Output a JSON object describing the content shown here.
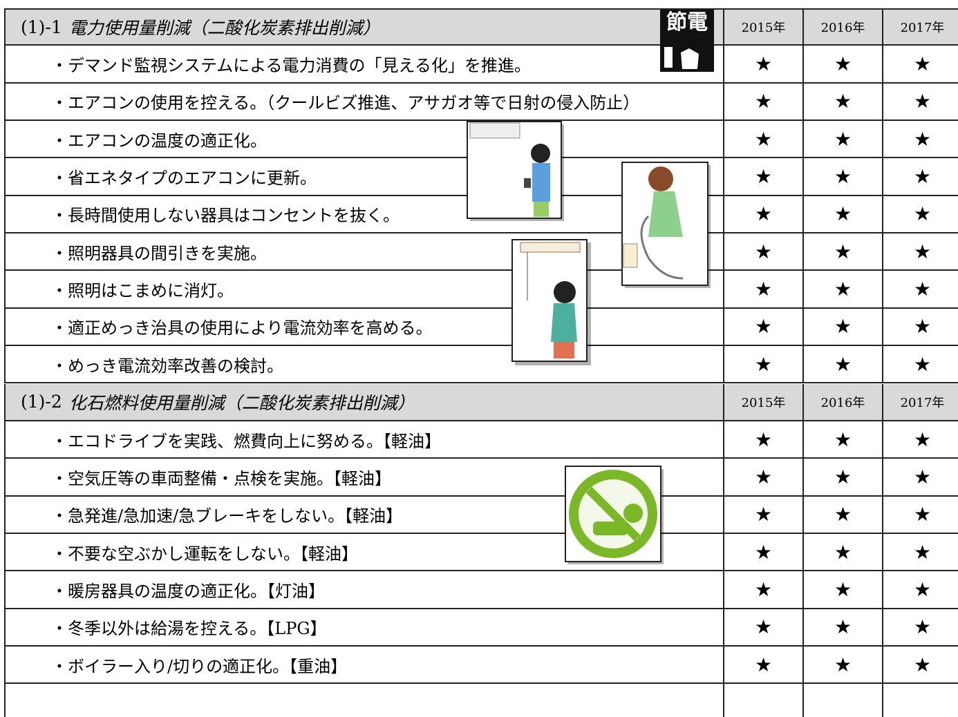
{
  "icon_text": "節電",
  "sections": [
    {
      "number": "(1)-1",
      "title": "電力使用量削減（二酸化炭素排出削減）",
      "years": [
        "2015年",
        "2016年",
        "2017年"
      ],
      "rows": [
        {
          "text": "・デマンド監視システムによる電力消費の「見える化」を推進。",
          "marks": [
            "★",
            "★",
            "★"
          ]
        },
        {
          "text": "・エアコンの使用を控える。（クールビズ推進、アサガオ等で日射の侵入防止）",
          "marks": [
            "★",
            "★",
            "★"
          ]
        },
        {
          "text": "・エアコンの温度の適正化。",
          "marks": [
            "★",
            "★",
            "★"
          ]
        },
        {
          "text": "・省エネタイプのエアコンに更新。",
          "marks": [
            "★",
            "★",
            "★"
          ]
        },
        {
          "text": "・長時間使用しない器具はコンセントを抜く。",
          "marks": [
            "★",
            "★",
            "★"
          ]
        },
        {
          "text": "・照明器具の間引きを実施。",
          "marks": [
            "★",
            "★",
            "★"
          ]
        },
        {
          "text": "・照明はこまめに消灯。",
          "marks": [
            "★",
            "★",
            "★"
          ]
        },
        {
          "text": "・適正めっき治具の使用により電流効率を高める。",
          "marks": [
            "★",
            "★",
            "★"
          ]
        },
        {
          "text": "・めっき電流効率改善の検討。",
          "marks": [
            "★",
            "★",
            "★"
          ]
        }
      ]
    },
    {
      "number": "(1)-2",
      "title": "化石燃料使用量削減（二酸化炭素排出削減）",
      "years": [
        "2015年",
        "2016年",
        "2017年"
      ],
      "rows": [
        {
          "text": "・エコドライブを実践、燃費向上に努める。【軽油】",
          "marks": [
            "★",
            "★",
            "★"
          ]
        },
        {
          "text": "・空気圧等の車両整備・点検を実施。【軽油】",
          "marks": [
            "★",
            "★",
            "★"
          ]
        },
        {
          "text": "・急発進/急加速/急ブレーキをしない。【軽油】",
          "marks": [
            "★",
            "★",
            "★"
          ]
        },
        {
          "text": "・不要な空ぶかし運転をしない。【軽油】",
          "marks": [
            "★",
            "★",
            "★"
          ]
        },
        {
          "text": "・暖房器具の温度の適正化。【灯油】",
          "marks": [
            "★",
            "★",
            "★"
          ]
        },
        {
          "text": "・冬季以外は給湯を控える。【LPG】",
          "marks": [
            "★",
            "★",
            "★"
          ]
        },
        {
          "text": "・ボイラー入り/切りの適正化。【重油】",
          "marks": [
            "★",
            "★",
            "★"
          ]
        }
      ]
    }
  ]
}
